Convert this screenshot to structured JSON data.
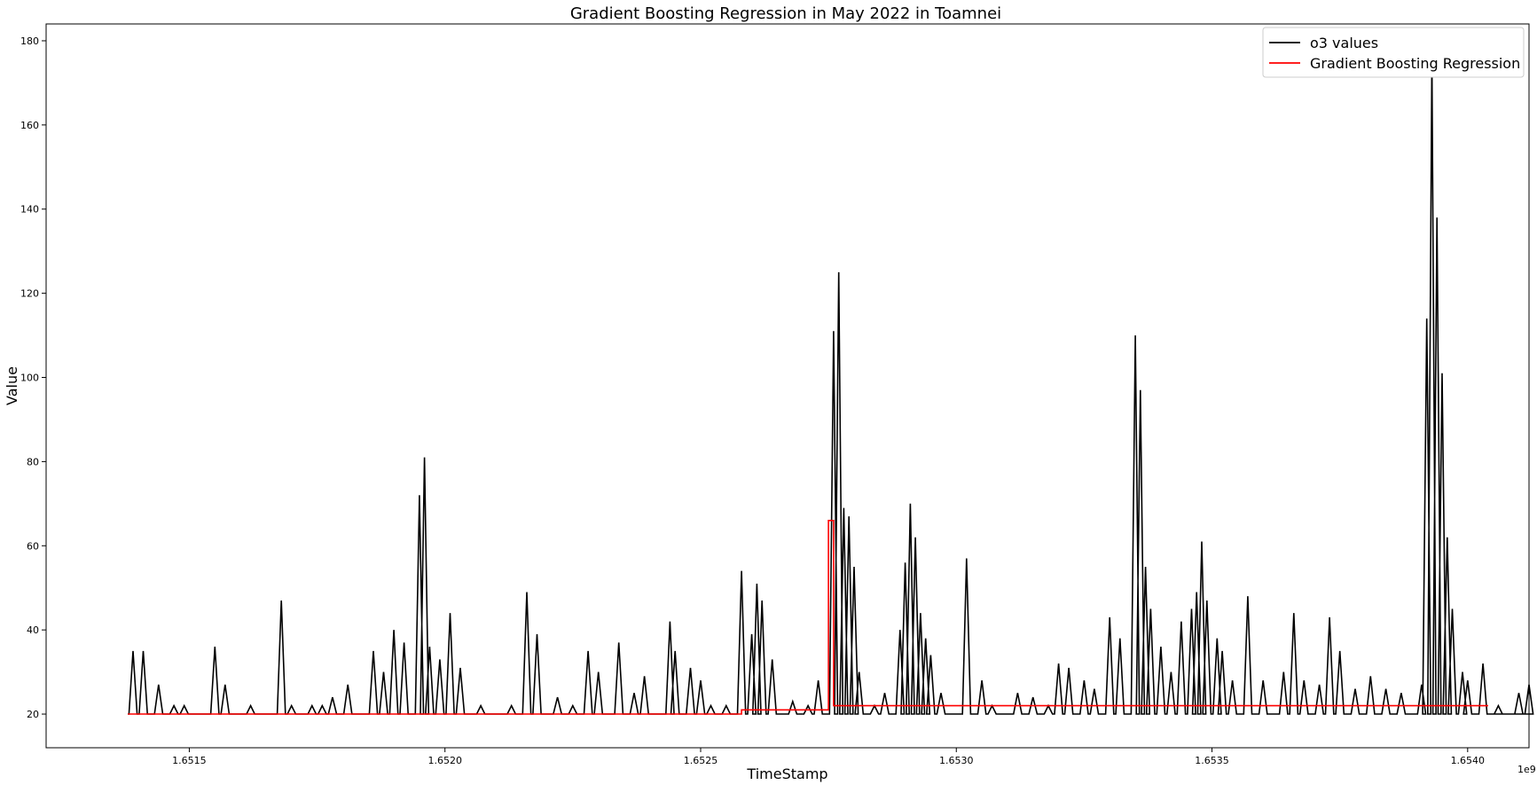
{
  "chart_data": {
    "type": "line",
    "title": "Gradient Boosting Regression in May 2022 in Toamnei",
    "xlabel": "TimeStamp",
    "ylabel": "Value",
    "x_offset_label": "1e9",
    "xlim": [
      1.65122,
      1.65412
    ],
    "ylim": [
      12,
      184
    ],
    "x_ticks": [
      1.6515,
      1.652,
      1.6525,
      1.653,
      1.6535,
      1.654
    ],
    "x_tick_labels": [
      "1.6515",
      "1.6520",
      "1.6525",
      "1.6530",
      "1.6535",
      "1.6540"
    ],
    "y_ticks": [
      20,
      40,
      60,
      80,
      100,
      120,
      140,
      160,
      180
    ],
    "y_tick_labels": [
      "20",
      "40",
      "60",
      "80",
      "100",
      "120",
      "140",
      "160",
      "180"
    ],
    "grid": false,
    "legend_position": "top-right",
    "series": [
      {
        "name": "o3 values",
        "color": "#000000",
        "baseline": 20,
        "spikes": [
          [
            1.65139,
            35
          ],
          [
            1.65141,
            35
          ],
          [
            1.65144,
            27
          ],
          [
            1.65147,
            22
          ],
          [
            1.65149,
            22
          ],
          [
            1.65155,
            36
          ],
          [
            1.65157,
            27
          ],
          [
            1.65162,
            22
          ],
          [
            1.65168,
            47
          ],
          [
            1.6517,
            22
          ],
          [
            1.65174,
            22
          ],
          [
            1.65176,
            22
          ],
          [
            1.65178,
            24
          ],
          [
            1.65181,
            27
          ],
          [
            1.65186,
            35
          ],
          [
            1.65188,
            30
          ],
          [
            1.6519,
            40
          ],
          [
            1.65192,
            37
          ],
          [
            1.65195,
            72
          ],
          [
            1.65196,
            81
          ],
          [
            1.65197,
            36
          ],
          [
            1.65199,
            33
          ],
          [
            1.65201,
            44
          ],
          [
            1.65203,
            31
          ],
          [
            1.65207,
            22
          ],
          [
            1.65213,
            22
          ],
          [
            1.65216,
            49
          ],
          [
            1.65218,
            39
          ],
          [
            1.65222,
            24
          ],
          [
            1.65225,
            22
          ],
          [
            1.65228,
            35
          ],
          [
            1.6523,
            30
          ],
          [
            1.65234,
            37
          ],
          [
            1.65237,
            25
          ],
          [
            1.65239,
            29
          ],
          [
            1.65244,
            42
          ],
          [
            1.65245,
            35
          ],
          [
            1.65248,
            31
          ],
          [
            1.6525,
            28
          ],
          [
            1.65252,
            22
          ],
          [
            1.65255,
            22
          ],
          [
            1.65258,
            54
          ],
          [
            1.6526,
            39
          ],
          [
            1.65261,
            51
          ],
          [
            1.65262,
            47
          ],
          [
            1.65264,
            33
          ],
          [
            1.65268,
            23
          ],
          [
            1.65271,
            22
          ],
          [
            1.65273,
            28
          ],
          [
            1.65276,
            111
          ],
          [
            1.65277,
            125
          ],
          [
            1.65278,
            69
          ],
          [
            1.65279,
            67
          ],
          [
            1.6528,
            55
          ],
          [
            1.65281,
            30
          ],
          [
            1.65284,
            22
          ],
          [
            1.65286,
            25
          ],
          [
            1.65289,
            40
          ],
          [
            1.6529,
            56
          ],
          [
            1.65291,
            70
          ],
          [
            1.65292,
            62
          ],
          [
            1.65293,
            44
          ],
          [
            1.65294,
            38
          ],
          [
            1.65295,
            34
          ],
          [
            1.65297,
            25
          ],
          [
            1.65302,
            57
          ],
          [
            1.65305,
            28
          ],
          [
            1.65307,
            22
          ],
          [
            1.65312,
            25
          ],
          [
            1.65315,
            24
          ],
          [
            1.65318,
            22
          ],
          [
            1.6532,
            32
          ],
          [
            1.65322,
            31
          ],
          [
            1.65325,
            28
          ],
          [
            1.65327,
            26
          ],
          [
            1.6533,
            43
          ],
          [
            1.65332,
            38
          ],
          [
            1.65335,
            110
          ],
          [
            1.65336,
            97
          ],
          [
            1.65337,
            55
          ],
          [
            1.65338,
            45
          ],
          [
            1.6534,
            36
          ],
          [
            1.65342,
            30
          ],
          [
            1.65344,
            42
          ],
          [
            1.65346,
            45
          ],
          [
            1.65347,
            49
          ],
          [
            1.65348,
            61
          ],
          [
            1.65349,
            47
          ],
          [
            1.65351,
            38
          ],
          [
            1.65352,
            35
          ],
          [
            1.65354,
            28
          ],
          [
            1.65357,
            48
          ],
          [
            1.6536,
            28
          ],
          [
            1.65364,
            30
          ],
          [
            1.65366,
            44
          ],
          [
            1.65368,
            28
          ],
          [
            1.65371,
            27
          ],
          [
            1.65373,
            43
          ],
          [
            1.65375,
            35
          ],
          [
            1.65378,
            26
          ],
          [
            1.65381,
            29
          ],
          [
            1.65384,
            26
          ],
          [
            1.65387,
            25
          ],
          [
            1.65391,
            27
          ],
          [
            1.65392,
            114
          ],
          [
            1.65393,
            176
          ],
          [
            1.65394,
            138
          ],
          [
            1.65395,
            101
          ],
          [
            1.65396,
            62
          ],
          [
            1.65397,
            45
          ],
          [
            1.65399,
            30
          ],
          [
            1.654,
            28
          ],
          [
            1.65403,
            32
          ],
          [
            1.65406,
            22
          ],
          [
            1.6541,
            25
          ],
          [
            1.65412,
            27
          ]
        ]
      },
      {
        "name": "Gradient Boosting Regression",
        "color": "#ff0000",
        "steps": [
          [
            1.65122,
            20
          ],
          [
            1.65258,
            20
          ],
          [
            1.65258,
            21
          ],
          [
            1.65275,
            21
          ],
          [
            1.65275,
            66
          ],
          [
            1.65276,
            66
          ],
          [
            1.65276,
            22
          ],
          [
            1.65412,
            22
          ]
        ]
      }
    ]
  }
}
